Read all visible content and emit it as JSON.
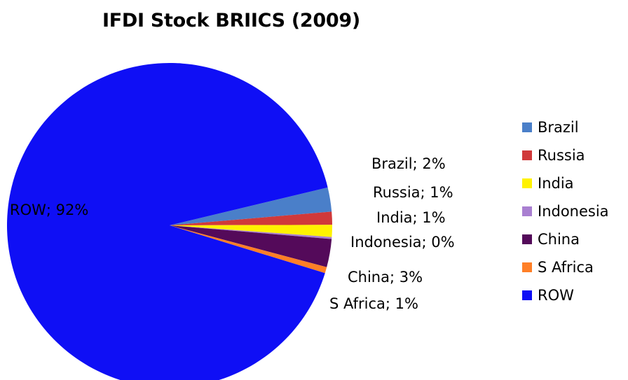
{
  "chart_data": {
    "type": "pie",
    "title": "IFDI Stock BRIICS (2009)",
    "categories": [
      "Brazil",
      "Russia",
      "India",
      "Indonesia",
      "China",
      "S Africa",
      "ROW"
    ],
    "values": [
      2.4,
      1.3,
      1.2,
      0.2,
      2.8,
      0.6,
      91.5
    ],
    "data_labels": [
      "Brazil; 2%",
      "Russia; 1%",
      "India; 1%",
      "Indonesia; 0%",
      "China; 3%",
      "S Africa; 1%",
      "ROW; 92%"
    ],
    "colors": [
      "#4a7fc9",
      "#d0393a",
      "#fff200",
      "#a97fd1",
      "#540a5a",
      "#ff7f27",
      "#0f0ff5"
    ],
    "legend_position": "right"
  }
}
